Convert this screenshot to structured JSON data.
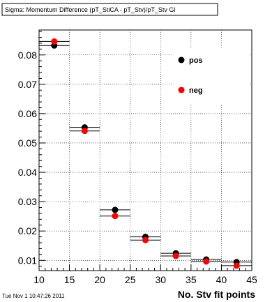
{
  "chart_data": {
    "type": "scatter",
    "title": "Sigma: Momentum Difference (pT_StiCA - pT_Stv)/pT_Stv Gl",
    "xlabel": "No. Stv fit points",
    "ylabel": "",
    "xlim": [
      10,
      45
    ],
    "ylim": [
      0.0065,
      0.0885
    ],
    "grid": true,
    "x_ticks": [
      10,
      15,
      20,
      25,
      30,
      35,
      40,
      45
    ],
    "y_ticks": [
      0.01,
      0.02,
      0.03,
      0.04,
      0.05,
      0.06,
      0.07,
      0.08
    ],
    "legend_position": "top-right",
    "x_bins": [
      [
        10,
        15
      ],
      [
        15,
        20
      ],
      [
        20,
        25
      ],
      [
        25,
        30
      ],
      [
        30,
        35
      ],
      [
        35,
        40
      ],
      [
        40,
        45
      ]
    ],
    "series": [
      {
        "name": "pos",
        "color": "#000000",
        "x": [
          12.5,
          17.5,
          22.5,
          27.5,
          32.5,
          37.5,
          42.5
        ],
        "values": [
          0.0832,
          0.0553,
          0.0272,
          0.018,
          0.0124,
          0.0103,
          0.0094
        ]
      },
      {
        "name": "neg",
        "color": "#ff0000",
        "x": [
          12.5,
          17.5,
          22.5,
          27.5,
          32.5,
          37.5,
          42.5
        ],
        "values": [
          0.0846,
          0.0541,
          0.0251,
          0.0169,
          0.0115,
          0.0096,
          0.0082
        ]
      }
    ]
  },
  "footer": {
    "timestamp": "Tue Nov  1 10:47:26 2011"
  }
}
